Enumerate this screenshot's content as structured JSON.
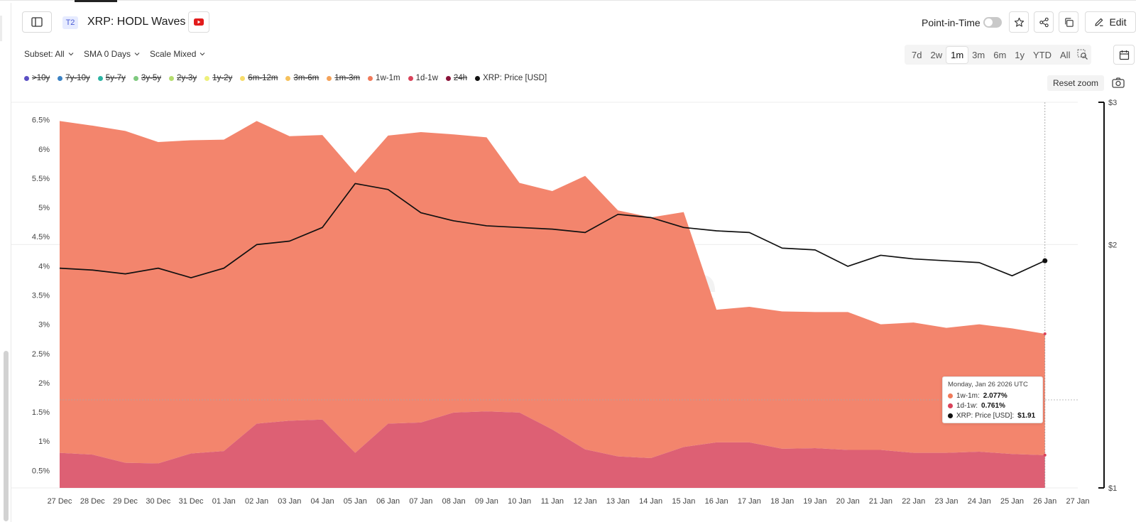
{
  "header": {
    "tier_badge": "T2",
    "title": "XRP: HODL Waves",
    "point_in_time_label": "Point-in-Time",
    "edit_label": "Edit"
  },
  "controls": {
    "subset": "Subset: All",
    "sma": "SMA 0 Days",
    "scale": "Scale Mixed",
    "ranges": [
      "7d",
      "2w",
      "1m",
      "3m",
      "6m",
      "1y",
      "YTD",
      "All"
    ],
    "active_range": "1m",
    "reset_zoom": "Reset zoom"
  },
  "legend": [
    {
      "label": ">10y",
      "color": "#5b4fc4",
      "enabled": false
    },
    {
      "label": "7y-10y",
      "color": "#3b82c4",
      "enabled": false
    },
    {
      "label": "5y-7y",
      "color": "#2bb3a3",
      "enabled": false
    },
    {
      "label": "3y-5y",
      "color": "#7fc97f",
      "enabled": false
    },
    {
      "label": "2y-3y",
      "color": "#b5dd6f",
      "enabled": false
    },
    {
      "label": "1y-2y",
      "color": "#eef07a",
      "enabled": false
    },
    {
      "label": "6m-12m",
      "color": "#f7dc6a",
      "enabled": false
    },
    {
      "label": "3m-6m",
      "color": "#f6c15c",
      "enabled": false
    },
    {
      "label": "1m-3m",
      "color": "#f4a259",
      "enabled": false
    },
    {
      "label": "1w-1m",
      "color": "#f07a5a",
      "enabled": true
    },
    {
      "label": "1d-1w",
      "color": "#d9435a",
      "enabled": true
    },
    {
      "label": "24h",
      "color": "#8a1238",
      "enabled": false
    },
    {
      "label": "XRP: Price [USD]",
      "color": "#111111",
      "enabled": true
    }
  ],
  "watermark": "glassnode",
  "tooltip": {
    "date": "Monday, Jan 26 2026 UTC",
    "rows": [
      {
        "label": "1w-1m: ",
        "value": "2.077%",
        "color": "#f07a5a"
      },
      {
        "label": "1d-1w: ",
        "value": "0.761%",
        "color": "#d9435a"
      },
      {
        "label": "XRP: Price [USD]: ",
        "value": "$1.91",
        "color": "#111111"
      }
    ]
  },
  "chart_data": {
    "type": "area",
    "title": "XRP: HODL Waves",
    "x": [
      "27 Dec",
      "28 Dec",
      "29 Dec",
      "30 Dec",
      "31 Dec",
      "01 Jan",
      "02 Jan",
      "03 Jan",
      "04 Jan",
      "05 Jan",
      "06 Jan",
      "07 Jan",
      "08 Jan",
      "09 Jan",
      "10 Jan",
      "11 Jan",
      "12 Jan",
      "13 Jan",
      "14 Jan",
      "15 Jan",
      "16 Jan",
      "17 Jan",
      "18 Jan",
      "19 Jan",
      "20 Jan",
      "21 Jan",
      "22 Jan",
      "23 Jan",
      "24 Jan",
      "25 Jan",
      "26 Jan"
    ],
    "x_ticks": [
      "27 Dec",
      "28 Dec",
      "29 Dec",
      "30 Dec",
      "31 Dec",
      "01 Jan",
      "02 Jan",
      "03 Jan",
      "04 Jan",
      "05 Jan",
      "06 Jan",
      "07 Jan",
      "08 Jan",
      "09 Jan",
      "10 Jan",
      "11 Jan",
      "12 Jan",
      "13 Jan",
      "14 Jan",
      "15 Jan",
      "16 Jan",
      "17 Jan",
      "18 Jan",
      "19 Jan",
      "20 Jan",
      "21 Jan",
      "22 Jan",
      "23 Jan",
      "24 Jan",
      "25 Jan",
      "26 Jan",
      "27 Jan"
    ],
    "series": [
      {
        "name": "1d-1w",
        "axis": "left",
        "stack": 0,
        "color": "#dd6074",
        "values": [
          0.8,
          0.77,
          0.63,
          0.62,
          0.79,
          0.83,
          1.3,
          1.35,
          1.37,
          0.8,
          1.3,
          1.32,
          1.49,
          1.51,
          1.49,
          1.2,
          0.86,
          0.74,
          0.71,
          0.9,
          0.98,
          0.98,
          0.87,
          0.88,
          0.85,
          0.85,
          0.8,
          0.8,
          0.82,
          0.78,
          0.761
        ]
      },
      {
        "name": "1w-1m",
        "axis": "left",
        "stack": 1,
        "color": "#f3856d",
        "values": [
          5.68,
          5.63,
          5.68,
          5.5,
          5.36,
          5.33,
          5.18,
          4.87,
          4.87,
          4.79,
          4.93,
          4.97,
          4.76,
          4.69,
          3.93,
          4.08,
          4.68,
          4.21,
          4.12,
          4.02,
          2.27,
          2.32,
          2.35,
          2.33,
          2.36,
          2.15,
          2.23,
          2.14,
          2.18,
          2.15,
          2.077
        ]
      },
      {
        "name": "XRP: Price [USD]",
        "axis": "right",
        "color": "#111111",
        "values": [
          1.87,
          1.86,
          1.84,
          1.87,
          1.82,
          1.87,
          2.0,
          2.02,
          2.1,
          2.38,
          2.34,
          2.19,
          2.14,
          2.11,
          2.1,
          2.09,
          2.07,
          2.18,
          2.16,
          2.1,
          2.08,
          2.07,
          1.98,
          1.97,
          1.88,
          1.94,
          1.92,
          1.91,
          1.9,
          1.83,
          1.91
        ]
      }
    ],
    "y_left": {
      "ticks": [
        "0.5%",
        "1%",
        "1.5%",
        "2%",
        "2.5%",
        "3%",
        "3.5%",
        "4%",
        "4.5%",
        "5%",
        "5.5%",
        "6%",
        "6.5%"
      ],
      "range": [
        0.2,
        6.8
      ]
    },
    "y_right": {
      "ticks": [
        "$1",
        "$2",
        "$3"
      ],
      "scale": "log",
      "range": [
        1,
        3
      ]
    },
    "grid": true,
    "legend": "top-left"
  }
}
